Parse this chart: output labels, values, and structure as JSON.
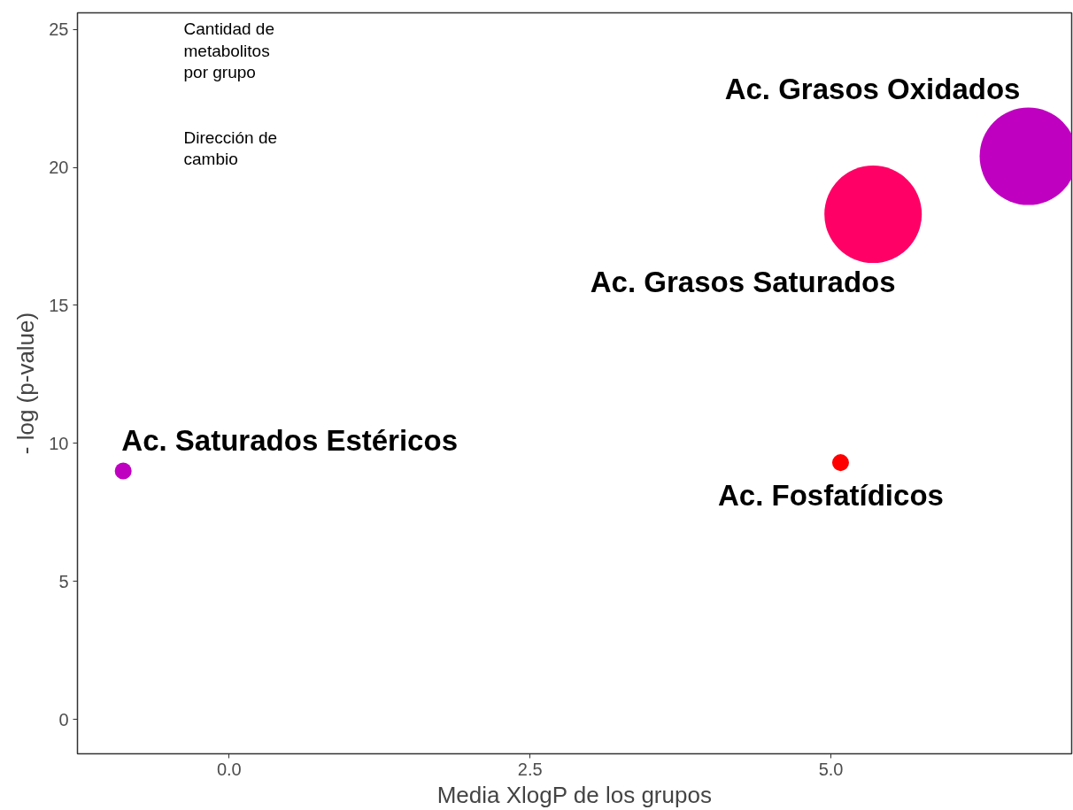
{
  "chart_data": {
    "type": "bubble",
    "xlabel": "Media XlogP de los grupos",
    "ylabel": "- log (p-value)",
    "x": [
      -0.88,
      5.08,
      5.35,
      6.64
    ],
    "values": [
      9.0,
      9.3,
      18.3,
      20.4
    ],
    "sizes": [
      0.03,
      0.03,
      1.0,
      1.0
    ],
    "colors": [
      "#c000c0",
      "#ff0000",
      "#ff0066",
      "#c000c0"
    ],
    "xlim": [
      -1.26,
      7.0
    ],
    "ylim": [
      -1.25,
      25.6
    ],
    "xticks": [
      {
        "value": 0,
        "label": "0.0"
      },
      {
        "value": 2.5,
        "label": "2.5"
      },
      {
        "value": 5,
        "label": "5.0"
      }
    ],
    "yticks": [
      0,
      5,
      10,
      15,
      20,
      25
    ],
    "grid": false,
    "annotations": [
      {
        "text": "Ac. Saturados Estéricos",
        "x": -0.88,
        "y": 9.0
      },
      {
        "text": "Ac. Fosfatídicos",
        "x": 5.08,
        "y": 9.3
      },
      {
        "text": "Ac. Grasos Saturados",
        "x": 5.35,
        "y": 18.3
      },
      {
        "text": "Ac. Grasos Oxidados",
        "x": 6.64,
        "y": 20.4
      },
      "Cantidad de\nmetabolitos\npor grupo",
      "Dirección de\ncambio"
    ]
  }
}
